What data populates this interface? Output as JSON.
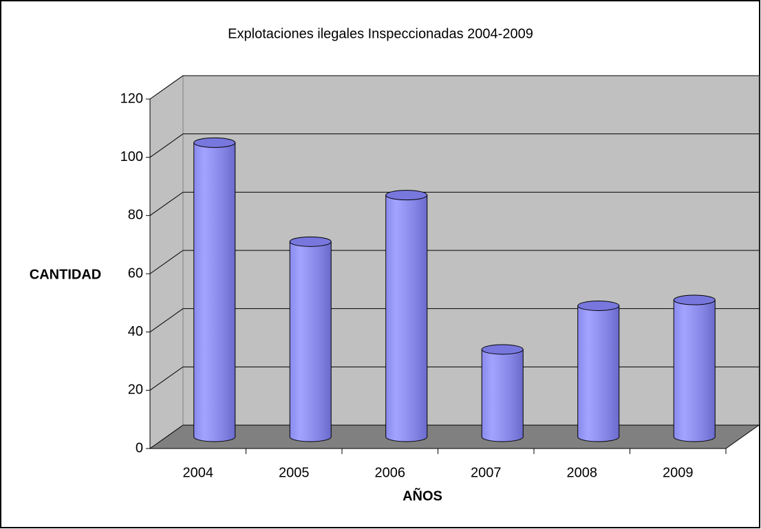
{
  "chart_data": {
    "type": "bar",
    "title": "Explotaciones ilegales Inspeccionadas 2004-2009",
    "x_label": "AÑOS",
    "y_label": "CANTIDAD",
    "categories": [
      "2004",
      "2005",
      "2006",
      "2007",
      "2008",
      "2009"
    ],
    "values": [
      101,
      67,
      83,
      30,
      45,
      47
    ],
    "color": "#9999ff",
    "ylim": [
      0,
      120
    ],
    "yticks": [
      0,
      20,
      40,
      60,
      80,
      100,
      120
    ],
    "grid": true
  }
}
